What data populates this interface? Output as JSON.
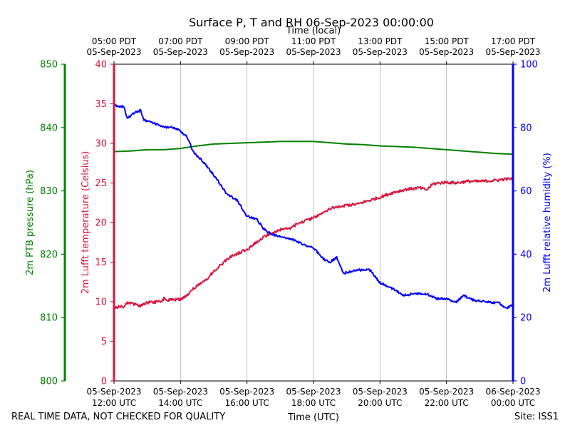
{
  "chart_data": {
    "type": "line",
    "title": "Surface P, T and RH 06-Sep-2023 00:00:00",
    "xlabel": "Time (UTC)",
    "xlabel_top": "Time (local)",
    "footer_left": "REAL TIME DATA, NOT CHECKED FOR QUALITY",
    "footer_right": "Site: ISS1",
    "x_range_hours": [
      12,
      24
    ],
    "x_ticks_bottom": [
      {
        "hour": 12,
        "l1": "05-Sep-2023",
        "l2": "12:00 UTC"
      },
      {
        "hour": 14,
        "l1": "05-Sep-2023",
        "l2": "14:00 UTC"
      },
      {
        "hour": 16,
        "l1": "05-Sep-2023",
        "l2": "16:00 UTC"
      },
      {
        "hour": 18,
        "l1": "05-Sep-2023",
        "l2": "18:00 UTC"
      },
      {
        "hour": 20,
        "l1": "05-Sep-2023",
        "l2": "20:00 UTC"
      },
      {
        "hour": 22,
        "l1": "05-Sep-2023",
        "l2": "22:00 UTC"
      },
      {
        "hour": 24,
        "l1": "06-Sep-2023",
        "l2": "00:00 UTC"
      }
    ],
    "x_ticks_top": [
      {
        "hour": 12,
        "l1": "05:00 PDT",
        "l2": "05-Sep-2023"
      },
      {
        "hour": 14,
        "l1": "07:00 PDT",
        "l2": "05-Sep-2023"
      },
      {
        "hour": 16,
        "l1": "09:00 PDT",
        "l2": "05-Sep-2023"
      },
      {
        "hour": 18,
        "l1": "11:00 PDT",
        "l2": "05-Sep-2023"
      },
      {
        "hour": 20,
        "l1": "13:00 PDT",
        "l2": "05-Sep-2023"
      },
      {
        "hour": 22,
        "l1": "15:00 PDT",
        "l2": "05-Sep-2023"
      },
      {
        "hour": 24,
        "l1": "17:00 PDT",
        "l2": "05-Sep-2023"
      }
    ],
    "axes": {
      "pressure": {
        "label": "2m PTB pressure (hPa)",
        "color": "#008000",
        "ylim": [
          800,
          850
        ],
        "ticks": [
          "800",
          "810",
          "820",
          "830",
          "840",
          "850"
        ]
      },
      "temperature": {
        "label": "2m Lufft temperature (Celsius)",
        "color": "#dc143c",
        "ylim": [
          0,
          40
        ],
        "ticks": [
          "0",
          "5",
          "10",
          "15",
          "20",
          "25",
          "30",
          "35",
          "40"
        ]
      },
      "humidity": {
        "label": "2m Lufft relative humidity (%)",
        "color": "#0000ff",
        "ylim": [
          0,
          100
        ],
        "ticks": [
          "0",
          "20",
          "40",
          "60",
          "80",
          "100"
        ]
      }
    },
    "series": [
      {
        "name": "2m PTB pressure",
        "axis": "pressure",
        "color": "#008000",
        "noise": 0,
        "points": [
          [
            12,
            836.2
          ],
          [
            12.5,
            836.3
          ],
          [
            13,
            836.5
          ],
          [
            13.5,
            836.5
          ],
          [
            14,
            836.7
          ],
          [
            14.5,
            837.1
          ],
          [
            15,
            837.4
          ],
          [
            15.5,
            837.5
          ],
          [
            16,
            837.6
          ],
          [
            16.5,
            837.7
          ],
          [
            17,
            837.8
          ],
          [
            17.5,
            837.8
          ],
          [
            18,
            837.8
          ],
          [
            18.5,
            837.6
          ],
          [
            19,
            837.4
          ],
          [
            19.5,
            837.3
          ],
          [
            20,
            837.1
          ],
          [
            20.5,
            837.0
          ],
          [
            21,
            836.9
          ],
          [
            21.5,
            836.7
          ],
          [
            22,
            836.5
          ],
          [
            22.5,
            836.3
          ],
          [
            23,
            836.1
          ],
          [
            23.5,
            835.9
          ],
          [
            24,
            835.8
          ]
        ]
      },
      {
        "name": "2m Lufft temperature",
        "axis": "temperature",
        "color": "#dc143c",
        "noise": 0.18,
        "points": [
          [
            12,
            9.3
          ],
          [
            12.3,
            9.4
          ],
          [
            12.4,
            9.9
          ],
          [
            12.8,
            9.5
          ],
          [
            13,
            9.9
          ],
          [
            13.4,
            10.0
          ],
          [
            13.5,
            10.4
          ],
          [
            13.6,
            10.2
          ],
          [
            14,
            10.3
          ],
          [
            14.2,
            10.8
          ],
          [
            14.4,
            11.7
          ],
          [
            14.7,
            12.5
          ],
          [
            15,
            13.8
          ],
          [
            15.3,
            15.0
          ],
          [
            15.6,
            15.9
          ],
          [
            16,
            16.6
          ],
          [
            16.3,
            17.6
          ],
          [
            16.6,
            18.4
          ],
          [
            17,
            19.1
          ],
          [
            17.3,
            19.3
          ],
          [
            17.6,
            20.0
          ],
          [
            18,
            20.6
          ],
          [
            18.3,
            21.3
          ],
          [
            18.6,
            21.9
          ],
          [
            19,
            22.2
          ],
          [
            19.3,
            22.3
          ],
          [
            19.6,
            22.7
          ],
          [
            20,
            23.2
          ],
          [
            20.4,
            23.8
          ],
          [
            20.8,
            24.2
          ],
          [
            21.2,
            24.4
          ],
          [
            21.4,
            24.1
          ],
          [
            21.6,
            24.9
          ],
          [
            22,
            25.1
          ],
          [
            22.3,
            25.0
          ],
          [
            22.6,
            25.2
          ],
          [
            23,
            25.2
          ],
          [
            23.4,
            25.3
          ],
          [
            23.8,
            25.5
          ],
          [
            24,
            25.5
          ]
        ]
      },
      {
        "name": "2m Lufft relative humidity",
        "axis": "humidity",
        "color": "#0000ff",
        "noise": 0.35,
        "points": [
          [
            12,
            87
          ],
          [
            12.3,
            86.5
          ],
          [
            12.4,
            83
          ],
          [
            12.6,
            84.5
          ],
          [
            12.8,
            85.5
          ],
          [
            12.9,
            82.5
          ],
          [
            13,
            82
          ],
          [
            13.3,
            81
          ],
          [
            13.5,
            80
          ],
          [
            13.8,
            80
          ],
          [
            14,
            79
          ],
          [
            14.2,
            77
          ],
          [
            14.4,
            72
          ],
          [
            14.7,
            69
          ],
          [
            15,
            65
          ],
          [
            15.4,
            59
          ],
          [
            15.7,
            57
          ],
          [
            16,
            52
          ],
          [
            16.3,
            51
          ],
          [
            16.5,
            48
          ],
          [
            16.7,
            46.5
          ],
          [
            17,
            45.5
          ],
          [
            17.4,
            44.5
          ],
          [
            17.7,
            43
          ],
          [
            18,
            42
          ],
          [
            18.3,
            38.5
          ],
          [
            18.5,
            37.5
          ],
          [
            18.7,
            39
          ],
          [
            18.9,
            34
          ],
          [
            19.3,
            35
          ],
          [
            19.7,
            35
          ],
          [
            20,
            31
          ],
          [
            20.4,
            29
          ],
          [
            20.7,
            27
          ],
          [
            21,
            27.5
          ],
          [
            21.4,
            27.5
          ],
          [
            21.7,
            26
          ],
          [
            22,
            26
          ],
          [
            22.3,
            25
          ],
          [
            22.5,
            27
          ],
          [
            22.8,
            25.5
          ],
          [
            23.2,
            25
          ],
          [
            23.6,
            24.5
          ],
          [
            23.8,
            23
          ],
          [
            24,
            24
          ]
        ]
      }
    ]
  }
}
